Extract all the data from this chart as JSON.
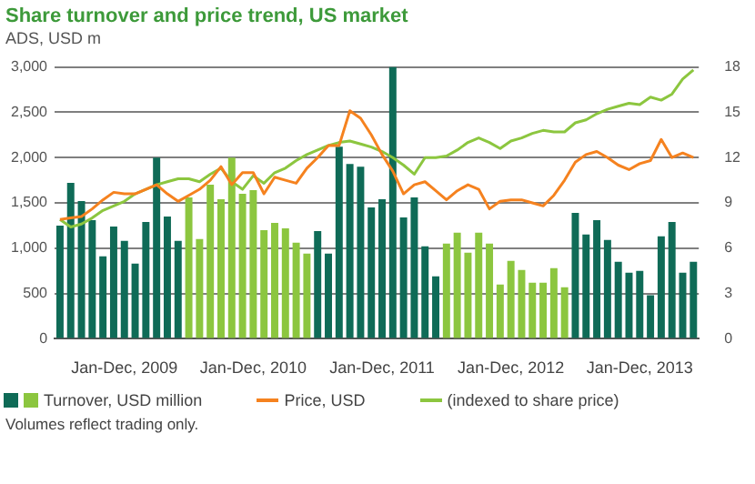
{
  "chart_data": {
    "type": "bar",
    "title": "Share turnover and price trend, US market",
    "ylabel": "ADS, USD m",
    "categories": [
      null,
      null,
      null,
      null,
      null,
      null,
      "Jan-Dec, 2009",
      null,
      null,
      null,
      null,
      null,
      null,
      null,
      null,
      null,
      null,
      null,
      "Jan-Dec, 2010",
      null,
      null,
      null,
      null,
      null,
      null,
      null,
      null,
      null,
      null,
      null,
      "Jan-Dec, 2011",
      null,
      null,
      null,
      null,
      null,
      null,
      null,
      null,
      null,
      null,
      null,
      "Jan-Dec, 2012",
      null,
      null,
      null,
      null,
      null,
      null,
      null,
      null,
      null,
      null,
      null,
      "Jan-Dec, 2013",
      null,
      null,
      null,
      null,
      null
    ],
    "series": [
      {
        "name": "Turnover, USD million",
        "color": "#0f6b57",
        "colors": [
          "#0f6b57",
          "#0f6b57",
          "#0f6b57",
          "#0f6b57",
          "#0f6b57",
          "#0f6b57",
          "#0f6b57",
          "#0f6b57",
          "#0f6b57",
          "#0f6b57",
          "#0f6b57",
          "#0f6b57",
          "#8cc63f",
          "#8cc63f",
          "#8cc63f",
          "#8cc63f",
          "#8cc63f",
          "#8cc63f",
          "#8cc63f",
          "#8cc63f",
          "#8cc63f",
          "#8cc63f",
          "#8cc63f",
          "#8cc63f",
          "#0f6b57",
          "#0f6b57",
          "#0f6b57",
          "#0f6b57",
          "#0f6b57",
          "#0f6b57",
          "#0f6b57",
          "#0f6b57",
          "#0f6b57",
          "#0f6b57",
          "#0f6b57",
          "#0f6b57",
          "#8cc63f",
          "#8cc63f",
          "#8cc63f",
          "#8cc63f",
          "#8cc63f",
          "#8cc63f",
          "#8cc63f",
          "#8cc63f",
          "#8cc63f",
          "#8cc63f",
          "#8cc63f",
          "#8cc63f",
          "#0f6b57",
          "#0f6b57",
          "#0f6b57",
          "#0f6b57",
          "#0f6b57",
          "#0f6b57",
          "#0f6b57",
          "#0f6b57",
          "#0f6b57",
          "#0f6b57",
          "#0f6b57",
          "#0f6b57"
        ],
        "values": [
          1250,
          1720,
          1520,
          1310,
          910,
          1240,
          1080,
          830,
          1290,
          2000,
          1350,
          1080,
          1560,
          1100,
          1700,
          1540,
          2000,
          1600,
          1640,
          1200,
          1280,
          1220,
          1060,
          940,
          1190,
          940,
          2120,
          1930,
          1900,
          1450,
          1540,
          3000,
          1340,
          1560,
          1020,
          690,
          1050,
          1170,
          950,
          1170,
          1050,
          600,
          860,
          760,
          620,
          620,
          780,
          570,
          1390,
          1150,
          1310,
          1090,
          850,
          730,
          750,
          480,
          1130,
          1290,
          730,
          850
        ]
      },
      {
        "name": "Price, USD",
        "type": "line",
        "axis": "y2",
        "color": "#f5821f",
        "values": [
          7.9,
          8.0,
          8.1,
          8.6,
          9.2,
          9.7,
          9.6,
          9.6,
          9.9,
          10.2,
          9.6,
          9.1,
          9.5,
          9.9,
          10.5,
          11.4,
          10.2,
          11.0,
          11.0,
          9.6,
          10.7,
          10.5,
          10.3,
          11.3,
          12.0,
          12.8,
          12.8,
          15.1,
          14.6,
          13.5,
          12.2,
          11.1,
          9.6,
          10.2,
          10.4,
          9.8,
          9.2,
          9.8,
          10.2,
          9.9,
          8.6,
          9.1,
          9.2,
          9.2,
          9.0,
          8.8,
          9.5,
          10.5,
          11.7,
          12.2,
          12.4,
          12.0,
          11.5,
          11.2,
          11.6,
          11.8,
          13.2,
          12.0,
          12.3,
          12.0
        ]
      },
      {
        "name": "(indexed to share price)",
        "type": "line",
        "axis": "y2",
        "color": "#8cc63f",
        "values": [
          7.9,
          7.4,
          7.6,
          8.0,
          8.5,
          8.8,
          9.1,
          9.6,
          9.9,
          10.2,
          10.4,
          10.6,
          10.6,
          10.4,
          10.9,
          11.3,
          10.4,
          9.9,
          10.8,
          10.3,
          11.0,
          11.3,
          11.8,
          12.2,
          12.5,
          12.8,
          13.0,
          13.1,
          12.9,
          12.7,
          12.4,
          12.0,
          11.5,
          10.9,
          12.0,
          12.0,
          12.1,
          12.5,
          13.0,
          13.3,
          13.0,
          12.6,
          13.1,
          13.3,
          13.6,
          13.8,
          13.7,
          13.7,
          14.3,
          14.5,
          14.9,
          15.2,
          15.4,
          15.6,
          15.5,
          16.0,
          15.8,
          16.2,
          17.2,
          17.8
        ]
      }
    ],
    "ylim": [
      0,
      3000
    ],
    "yticks": [
      0,
      500,
      {
        "value": 1000,
        "label": "1,000"
      },
      {
        "value": 1500,
        "label": "1,500"
      },
      {
        "value": 2000,
        "label": "2,000"
      },
      {
        "value": 2500,
        "label": "2,500"
      },
      {
        "value": 3000,
        "label": "3,000"
      }
    ],
    "y2lim": [
      0,
      18
    ],
    "y2ticks": [
      0,
      3,
      6,
      9,
      12,
      15,
      18
    ],
    "grid": "y",
    "legend": "bottom",
    "marker": "none",
    "annotations": [
      "Volumes reflect trading only."
    ]
  }
}
